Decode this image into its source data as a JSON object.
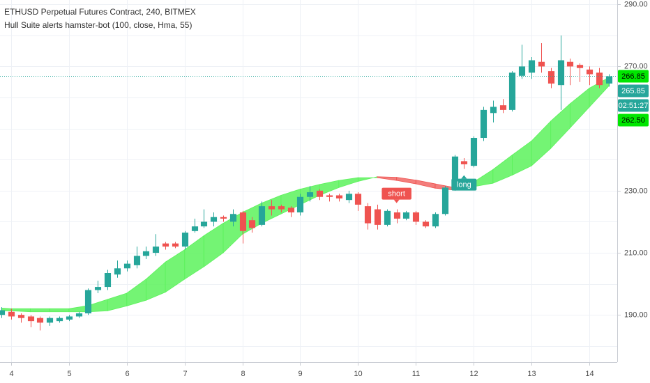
{
  "chart_data": {
    "type": "candlestick",
    "title": "ETHUSD Perpetual Futures Contract, 240, BITMEX",
    "subtitle": "Hull Suite alerts hamster-bot (100, close, Hma, 55)",
    "up_color": "#26a69a",
    "down_color": "#ef5350",
    "x": [
      3.833,
      4,
      4.167,
      4.333,
      4.5,
      4.667,
      4.833,
      5,
      5.167,
      5.333,
      5.5,
      5.667,
      5.833,
      6,
      6.167,
      6.333,
      6.5,
      6.667,
      6.833,
      7,
      7.167,
      7.333,
      7.5,
      7.667,
      7.833,
      8,
      8.167,
      8.333,
      8.5,
      8.667,
      8.833,
      9,
      9.167,
      9.333,
      9.5,
      9.667,
      9.833,
      10,
      10.167,
      10.333,
      10.5,
      10.667,
      10.833,
      11,
      11.167,
      11.333,
      11.5,
      11.667,
      11.833,
      12,
      12.167,
      12.333,
      12.5,
      12.667,
      12.833,
      13,
      13.167,
      13.333,
      13.5,
      13.667,
      13.833,
      14,
      14.167,
      14.333
    ],
    "open": [
      190,
      191,
      190,
      189.5,
      189,
      187.5,
      188,
      188.5,
      189.5,
      190.5,
      198,
      199,
      203,
      205,
      206,
      209,
      210,
      213,
      213,
      212,
      217,
      218.5,
      220,
      221.5,
      220,
      223,
      220.5,
      219,
      225,
      225,
      224.5,
      223,
      228,
      230,
      228.5,
      228.5,
      227,
      229,
      225,
      224,
      219,
      223,
      221,
      223,
      220,
      218.5,
      222.5,
      230.5,
      239.5,
      238,
      247,
      255,
      257.5,
      256,
      267,
      268,
      271.5,
      268.5,
      264,
      271.5,
      270.5,
      269,
      268,
      264.5
    ],
    "high": [
      192.5,
      192,
      190.5,
      190,
      189.5,
      189.5,
      189.5,
      190,
      191,
      198.5,
      201,
      204.5,
      207.5,
      207.5,
      212,
      212,
      216,
      213.5,
      213.5,
      217,
      221,
      224,
      223,
      222,
      224,
      223.5,
      221.5,
      226.5,
      227,
      225.5,
      225,
      229,
      231.5,
      230.5,
      229,
      229,
      230,
      229.5,
      226,
      225.5,
      224,
      224,
      223.5,
      223.5,
      220.5,
      223,
      231.5,
      241.5,
      240.5,
      247.5,
      257,
      259,
      259.5,
      268.5,
      277,
      273,
      277.5,
      269.5,
      280,
      272.5,
      271,
      270,
      269.5,
      267.5
    ],
    "low": [
      189,
      188.5,
      187.5,
      186,
      185,
      186.5,
      187.5,
      188,
      189,
      190,
      197,
      198,
      202,
      204,
      205,
      208,
      209,
      211,
      211.5,
      211,
      216.5,
      218,
      218.5,
      220,
      218.5,
      213,
      216.5,
      218.5,
      222,
      223,
      221.5,
      222,
      226.5,
      227,
      226.5,
      226.5,
      226,
      223.5,
      217.5,
      217.5,
      218.5,
      219.5,
      220.5,
      219,
      218,
      218,
      222,
      230,
      237,
      237.5,
      246,
      252,
      255,
      255.5,
      266,
      266,
      268,
      263,
      256,
      264,
      265,
      264,
      263,
      263.5
    ],
    "close": [
      191.5,
      189.5,
      189,
      188,
      187.5,
      189,
      189,
      189.5,
      190.5,
      198,
      199,
      203.5,
      205,
      206.5,
      209,
      210.5,
      212,
      212,
      212,
      216.5,
      218.5,
      220,
      221.5,
      221,
      222.5,
      217,
      218,
      225,
      224,
      224,
      223,
      228,
      229.5,
      228,
      228,
      227.5,
      229,
      225.5,
      219.5,
      219,
      223.5,
      221,
      223,
      220,
      218.5,
      222.5,
      231,
      241,
      238.5,
      247,
      256,
      257,
      256,
      268,
      270,
      272,
      270,
      264.5,
      272,
      270,
      269.5,
      267.5,
      264,
      266.85
    ],
    "band": {
      "x": [
        3.833,
        4,
        4.333,
        4.667,
        5,
        5.333,
        5.667,
        6,
        6.333,
        6.667,
        7,
        7.333,
        7.667,
        8,
        8.333,
        8.667,
        9,
        9.333,
        9.667,
        10,
        10.333,
        10.667,
        11,
        11.333,
        11.667,
        12,
        12.333,
        12.667,
        13,
        13.333,
        13.667,
        14,
        14.333
      ],
      "fast": [
        192.2,
        192,
        192,
        192,
        192,
        193,
        195,
        197,
        201.5,
        207,
        211,
        215.5,
        219.5,
        223,
        226,
        228.5,
        230.5,
        232,
        233.3,
        234.2,
        234.2,
        233.3,
        232.2,
        230.8,
        230.2,
        232.8,
        236.8,
        241.5,
        246,
        252.4,
        258,
        263,
        266.4
      ],
      "slow": [
        191.3,
        191.3,
        191,
        191,
        191,
        191,
        191.3,
        192.9,
        194.7,
        197.3,
        201.5,
        205.5,
        210,
        216,
        219.5,
        222.5,
        225.5,
        228.5,
        231,
        233,
        234.5,
        234.3,
        233.4,
        232.2,
        231,
        231.3,
        232.4,
        235,
        238,
        243.6,
        250.2,
        256.9,
        263.6
      ],
      "up_color": "#5cf25c",
      "down_color": "#ef5350"
    },
    "signals": [
      {
        "label": "short",
        "x": 10.667,
        "position": "above",
        "color": "#ef5350"
      },
      {
        "label": "long",
        "x": 11.833,
        "position": "below",
        "color": "#26a69a"
      }
    ],
    "price_labels": [
      {
        "value": 266.85,
        "color": "#00e600",
        "text_color": "#000000",
        "line": true
      },
      {
        "value": 265.85,
        "color": "#26a69a",
        "text_color": "#ffffff"
      },
      {
        "countdown": "02:51:27",
        "color": "#26a69a",
        "text_color": "#ffffff"
      },
      {
        "value": 262.5,
        "label": "262.50",
        "color": "#00e600",
        "text_color": "#000000"
      }
    ],
    "xlim": [
      3.807,
      14.483
    ],
    "xticks": [
      4,
      5,
      6,
      7,
      8,
      9,
      10,
      11,
      12,
      13,
      14
    ],
    "ylim": [
      174.8,
      291.4
    ],
    "yticks": [
      {
        "value": 290,
        "label": "290.00"
      },
      {
        "value": 270,
        "label": "270.00"
      },
      {
        "value": 230,
        "label": "230.00"
      },
      {
        "value": 210,
        "label": "210.00"
      },
      {
        "value": 190,
        "label": "190.00"
      }
    ],
    "y_minor_ticks": [
      180,
      200,
      220,
      240,
      250,
      260,
      280
    ],
    "grid": true
  }
}
